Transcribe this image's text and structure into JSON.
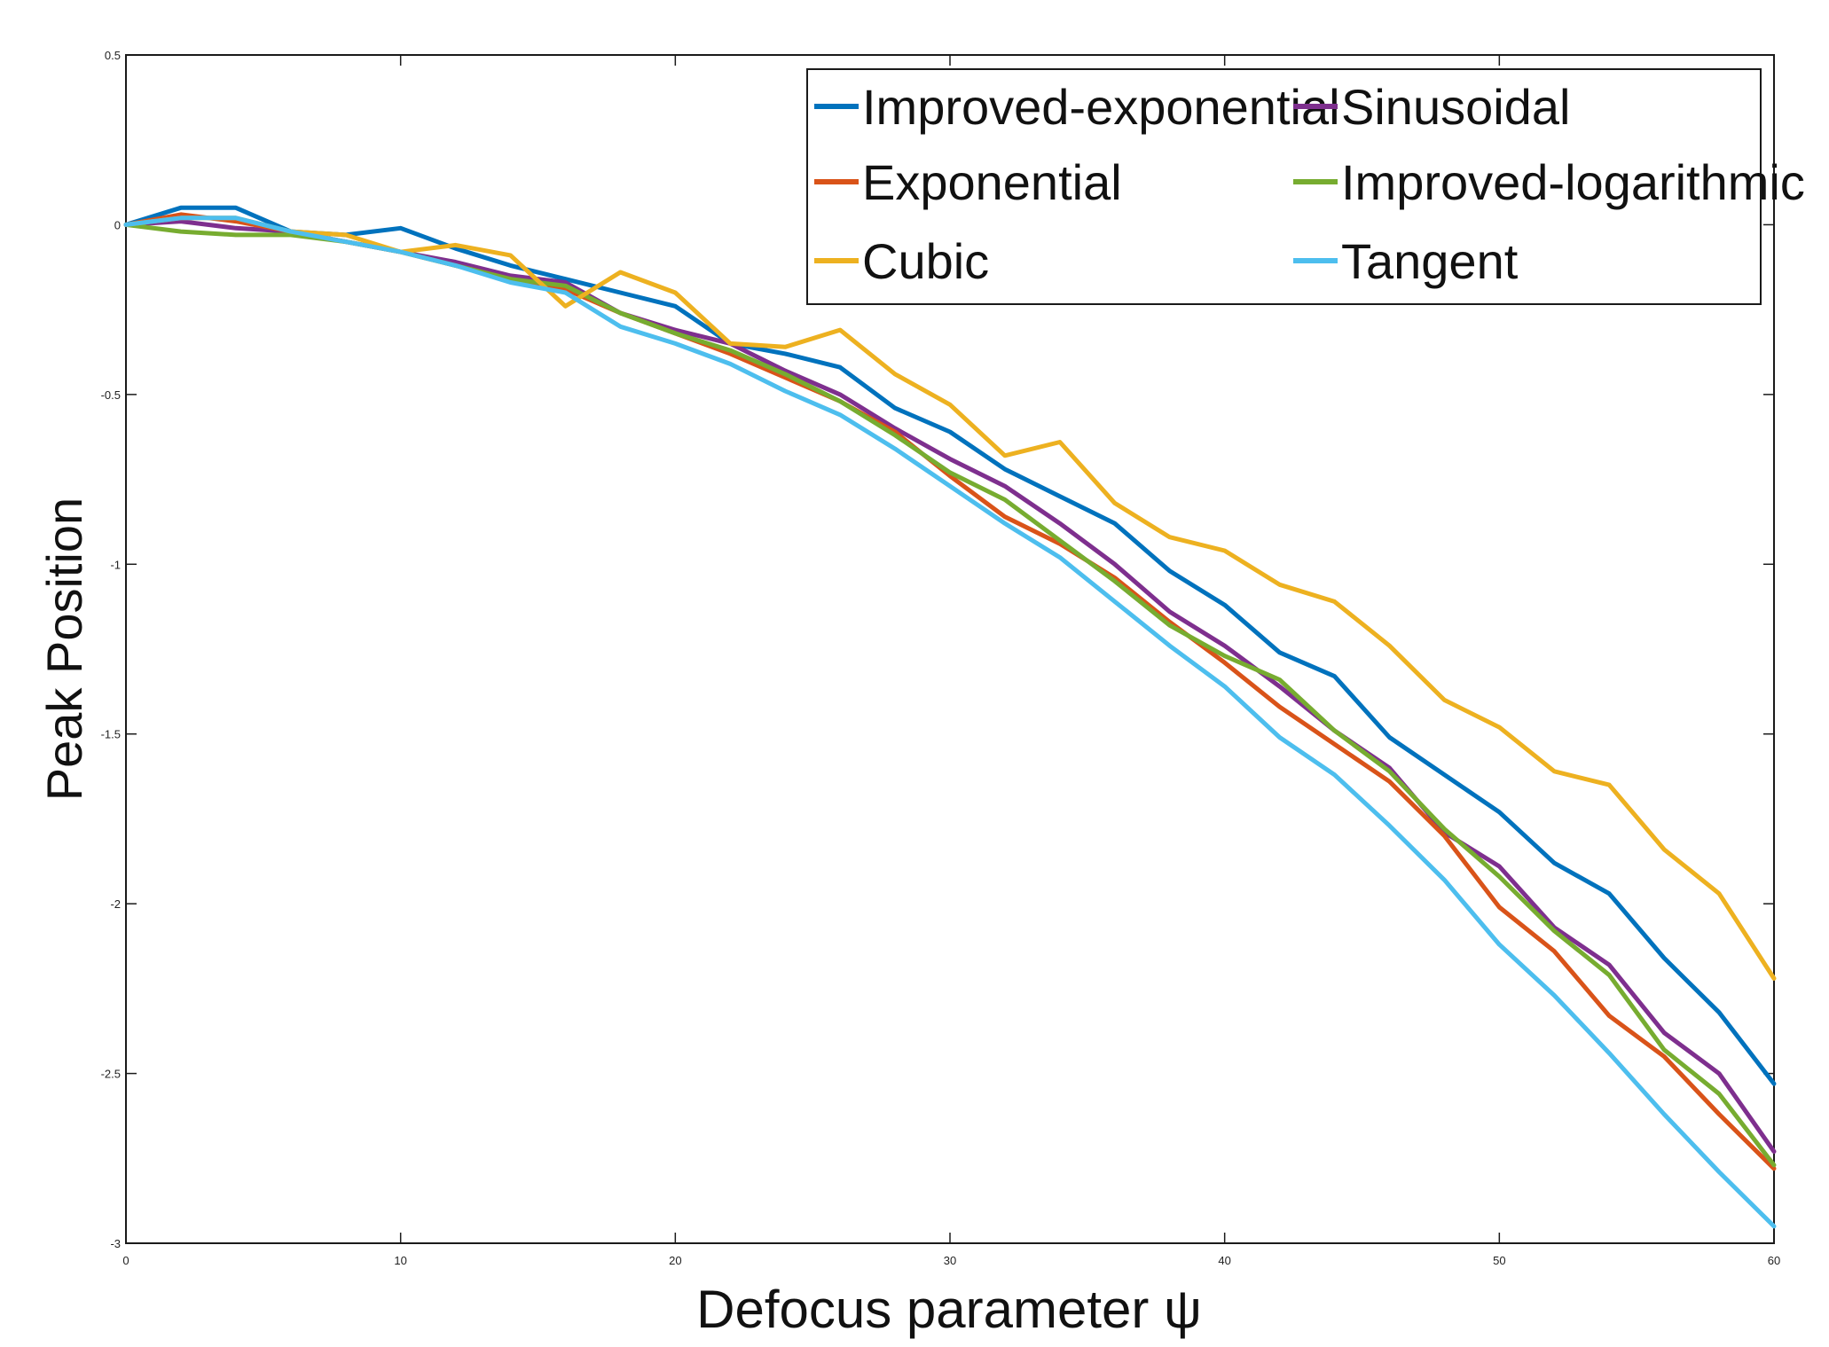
{
  "chart_data": {
    "type": "line",
    "title": "",
    "xlabel": "Defocus parameter ψ",
    "ylabel": "Peak Position",
    "xlim": [
      0,
      60
    ],
    "ylim": [
      -3,
      0.5
    ],
    "xticks": [
      0,
      10,
      20,
      30,
      40,
      50,
      60
    ],
    "xtick_labels": [
      "0",
      "10",
      "20",
      "30",
      "40",
      "50",
      "60"
    ],
    "yticks": [
      0.5,
      0,
      -0.5,
      -1,
      -1.5,
      -2,
      -2.5,
      -3
    ],
    "ytick_labels": [
      "0.5",
      "0",
      "-0.5",
      "-1",
      "-1.5",
      "-2",
      "-2.5",
      "-3"
    ],
    "grid": false,
    "legend_position": "top-right",
    "x": [
      0,
      2,
      4,
      6,
      8,
      10,
      12,
      14,
      16,
      18,
      20,
      22,
      24,
      26,
      28,
      30,
      32,
      34,
      36,
      38,
      40,
      42,
      44,
      46,
      48,
      50,
      52,
      54,
      56,
      58,
      60
    ],
    "series": [
      {
        "name": "Improved-exponential",
        "color": "#0072bd",
        "values": [
          0,
          0.05,
          0.05,
          -0.02,
          -0.03,
          -0.01,
          -0.07,
          -0.12,
          -0.16,
          -0.2,
          -0.24,
          -0.35,
          -0.38,
          -0.42,
          -0.54,
          -0.61,
          -0.72,
          -0.8,
          -0.88,
          -1.02,
          -1.12,
          -1.26,
          -1.33,
          -1.51,
          -1.62,
          -1.73,
          -1.88,
          -1.97,
          -2.16,
          -2.32,
          -2.53
        ]
      },
      {
        "name": "Sinusoidal",
        "color": "#7e2f8e",
        "values": [
          0,
          0.01,
          -0.01,
          -0.02,
          -0.05,
          -0.08,
          -0.11,
          -0.15,
          -0.17,
          -0.26,
          -0.31,
          -0.35,
          -0.43,
          -0.5,
          -0.6,
          -0.69,
          -0.77,
          -0.88,
          -1.0,
          -1.14,
          -1.24,
          -1.36,
          -1.49,
          -1.6,
          -1.79,
          -1.89,
          -2.07,
          -2.18,
          -2.38,
          -2.5,
          -2.73
        ]
      },
      {
        "name": "Exponential",
        "color": "#d95319",
        "values": [
          0,
          0.03,
          0.01,
          -0.02,
          -0.05,
          -0.08,
          -0.12,
          -0.16,
          -0.19,
          -0.26,
          -0.32,
          -0.38,
          -0.45,
          -0.52,
          -0.61,
          -0.74,
          -0.86,
          -0.94,
          -1.04,
          -1.17,
          -1.29,
          -1.42,
          -1.53,
          -1.64,
          -1.8,
          -2.01,
          -2.14,
          -2.33,
          -2.45,
          -2.62,
          -2.78
        ]
      },
      {
        "name": "Improved-logarithmic",
        "color": "#77ac30",
        "values": [
          0,
          -0.02,
          -0.03,
          -0.03,
          -0.05,
          -0.08,
          -0.12,
          -0.16,
          -0.18,
          -0.26,
          -0.32,
          -0.37,
          -0.44,
          -0.52,
          -0.62,
          -0.73,
          -0.81,
          -0.93,
          -1.05,
          -1.18,
          -1.27,
          -1.34,
          -1.49,
          -1.61,
          -1.78,
          -1.92,
          -2.08,
          -2.21,
          -2.43,
          -2.56,
          -2.77
        ]
      },
      {
        "name": "Cubic",
        "color": "#edb120",
        "values": [
          0,
          0.02,
          0.02,
          -0.02,
          -0.03,
          -0.08,
          -0.06,
          -0.09,
          -0.24,
          -0.14,
          -0.2,
          -0.35,
          -0.36,
          -0.31,
          -0.44,
          -0.53,
          -0.68,
          -0.64,
          -0.82,
          -0.92,
          -0.96,
          -1.06,
          -1.11,
          -1.24,
          -1.4,
          -1.48,
          -1.61,
          -1.65,
          -1.84,
          -1.97,
          -2.22
        ]
      },
      {
        "name": "Tangent",
        "color": "#4dbeee",
        "values": [
          0,
          0.02,
          0.02,
          -0.02,
          -0.05,
          -0.08,
          -0.12,
          -0.17,
          -0.2,
          -0.3,
          -0.35,
          -0.41,
          -0.49,
          -0.56,
          -0.66,
          -0.77,
          -0.88,
          -0.98,
          -1.11,
          -1.24,
          -1.36,
          -1.51,
          -1.62,
          -1.77,
          -1.93,
          -2.12,
          -2.27,
          -2.44,
          -2.62,
          -2.79,
          -2.95
        ]
      }
    ]
  }
}
